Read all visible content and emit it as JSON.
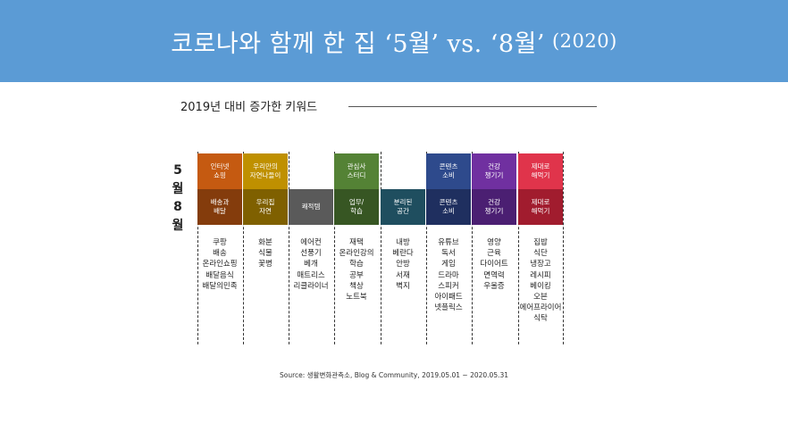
{
  "header": {
    "title": "코로나와 함께 한 집 ‘5월’ vs. ‘8월’",
    "year": "(2020)",
    "background_color": "#5b9bd5"
  },
  "subheading": "2019년 대비 증가한 키워드",
  "row_labels": {
    "may": [
      "5",
      "월"
    ],
    "august": [
      "8",
      "월"
    ]
  },
  "columns": [
    {
      "may": {
        "label": "인터넷\n쇼핑",
        "color": "#c55a11"
      },
      "august": {
        "label": "배송과\n배달",
        "color": "#843c0c"
      },
      "items": [
        "쿠팡",
        "배송",
        "온라인쇼핑",
        "배달음식",
        "배달의민족"
      ]
    },
    {
      "may": {
        "label": "우리만의\n자연나들이",
        "color": "#bf9000"
      },
      "august": {
        "label": "우리집\n자연",
        "color": "#7f6000"
      },
      "items": [
        "화분",
        "식물",
        "꽃병"
      ]
    },
    {
      "may": null,
      "august": {
        "label": "쾌적템",
        "color": "#5a5a5a"
      },
      "items": [
        "에어컨",
        "선풍기",
        "베개",
        "매트리스",
        "리클라이너"
      ]
    },
    {
      "may": {
        "label": "관심사\n스터디",
        "color": "#548235"
      },
      "august": {
        "label": "업무/\n학습",
        "color": "#375623"
      },
      "items": [
        "재택",
        "온라인강의",
        "학습",
        "공부",
        "책상",
        "노트북"
      ]
    },
    {
      "may": null,
      "august": {
        "label": "분리된\n공간",
        "color": "#1f4e5f"
      },
      "items": [
        "내방",
        "베란다",
        "안방",
        "서재",
        "벽지"
      ]
    },
    {
      "may": {
        "label": "콘텐츠\n소비",
        "color": "#2e4a8c"
      },
      "august": {
        "label": "콘텐츠\n소비",
        "color": "#1f2f5f"
      },
      "items": [
        "유튜브",
        "독서",
        "게임",
        "드라마",
        "스피커",
        "아이패드",
        "넷플릭스"
      ]
    },
    {
      "may": {
        "label": "건강\n챙기기",
        "color": "#7030a0"
      },
      "august": {
        "label": "건강\n챙기기",
        "color": "#4b1f72"
      },
      "items": [
        "영양",
        "근육",
        "다이어트",
        "면역력",
        "우울증"
      ]
    },
    {
      "may": {
        "label": "제대로\n해먹기",
        "color": "#e0344b"
      },
      "august": {
        "label": "제대로\n해먹기",
        "color": "#a11c2e"
      },
      "items": [
        "집밥",
        "식단",
        "냉장고",
        "레시피",
        "베이킹",
        "오븐",
        "에어프라이어",
        "식탁"
      ]
    }
  ],
  "source": "Source: 생활변화관측소, Blog & Community, 2019.05.01 ~ 2020.05.31"
}
